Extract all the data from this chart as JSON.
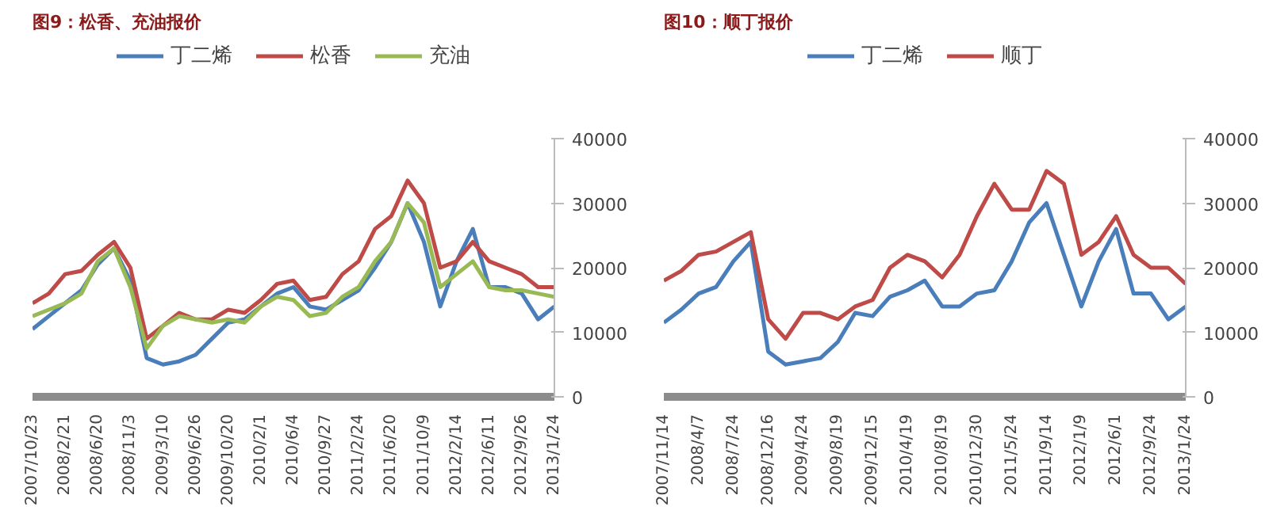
{
  "chart_data": [
    {
      "type": "line",
      "title": "图9：松香、充油报价",
      "legend": "top",
      "grid": false,
      "categories": [
        "2007/10/23",
        null,
        "2008/2/21",
        null,
        "2008/6/20",
        null,
        "2008/11/3",
        null,
        "2009/3/10",
        null,
        "2009/6/26",
        null,
        "2009/10/20",
        null,
        "2010/2/1",
        null,
        "2010/6/4",
        null,
        "2010/9/27",
        null,
        "2011/2/24",
        null,
        "2011/6/20",
        null,
        "2011/10/9",
        null,
        "2012/2/14",
        null,
        "2012/6/11",
        null,
        "2012/9/26",
        null,
        "2013/1/24"
      ],
      "ylim": [
        0,
        40000
      ],
      "yticks": [
        0,
        10000,
        20000,
        30000,
        40000
      ],
      "series": [
        {
          "name": "丁二烯",
          "color": "#4a7ebb",
          "values": [
            10500,
            12500,
            14500,
            16500,
            20500,
            23000,
            18000,
            6000,
            5000,
            5500,
            6500,
            9000,
            11500,
            12000,
            14000,
            16000,
            17000,
            14000,
            13500,
            15000,
            16500,
            20000,
            24000,
            30000,
            24000,
            14000,
            21000,
            26000,
            17000,
            17000,
            16000,
            12000,
            14000
          ]
        },
        {
          "name": "松香",
          "color": "#be4b48",
          "values": [
            14500,
            16000,
            19000,
            19500,
            22000,
            24000,
            20000,
            9000,
            11000,
            13000,
            12000,
            12000,
            13500,
            13000,
            15000,
            17500,
            18000,
            15000,
            15500,
            19000,
            21000,
            26000,
            28000,
            33500,
            30000,
            20000,
            21000,
            24000,
            21000,
            20000,
            19000,
            17000,
            17000
          ]
        },
        {
          "name": "充油",
          "color": "#98b954",
          "values": [
            12500,
            13500,
            14500,
            16000,
            21000,
            23000,
            17000,
            7500,
            11000,
            12500,
            12000,
            11500,
            12000,
            11500,
            14000,
            15500,
            15000,
            12500,
            13000,
            15500,
            17000,
            21000,
            24000,
            30000,
            27000,
            17000,
            19000,
            21000,
            17000,
            16500,
            16500,
            16000,
            15500
          ]
        }
      ]
    },
    {
      "type": "line",
      "title": "图10：顺丁报价",
      "legend": "top",
      "grid": false,
      "categories": [
        "2007/11/14",
        null,
        "2008/4/7",
        null,
        "2008/7/24",
        null,
        "2008/12/16",
        null,
        "2009/4/24",
        null,
        "2009/8/19",
        null,
        "2009/12/15",
        null,
        "2010/4/19",
        null,
        "2010/8/19",
        null,
        "2010/12/30",
        null,
        "2011/5/24",
        null,
        "2011/9/14",
        null,
        "2012/1/9",
        null,
        "2012/6/1",
        null,
        "2012/9/24",
        null,
        "2013/1/24"
      ],
      "ylim": [
        0,
        40000
      ],
      "yticks": [
        0,
        10000,
        20000,
        30000,
        40000
      ],
      "series": [
        {
          "name": "丁二烯",
          "color": "#4a7ebb",
          "values": [
            11500,
            13500,
            16000,
            17000,
            21000,
            24000,
            7000,
            5000,
            5500,
            6000,
            8500,
            13000,
            12500,
            15500,
            16500,
            18000,
            14000,
            14000,
            16000,
            16500,
            21000,
            27000,
            30000,
            22000,
            14000,
            21000,
            26000,
            16000,
            16000,
            12000,
            14000
          ]
        },
        {
          "name": "顺丁",
          "color": "#be4b48",
          "values": [
            18000,
            19500,
            22000,
            22500,
            24000,
            25500,
            12000,
            9000,
            13000,
            13000,
            12000,
            14000,
            15000,
            20000,
            22000,
            21000,
            18500,
            22000,
            28000,
            33000,
            29000,
            29000,
            35000,
            33000,
            22000,
            24000,
            28000,
            22000,
            20000,
            20000,
            17500
          ]
        }
      ]
    }
  ]
}
